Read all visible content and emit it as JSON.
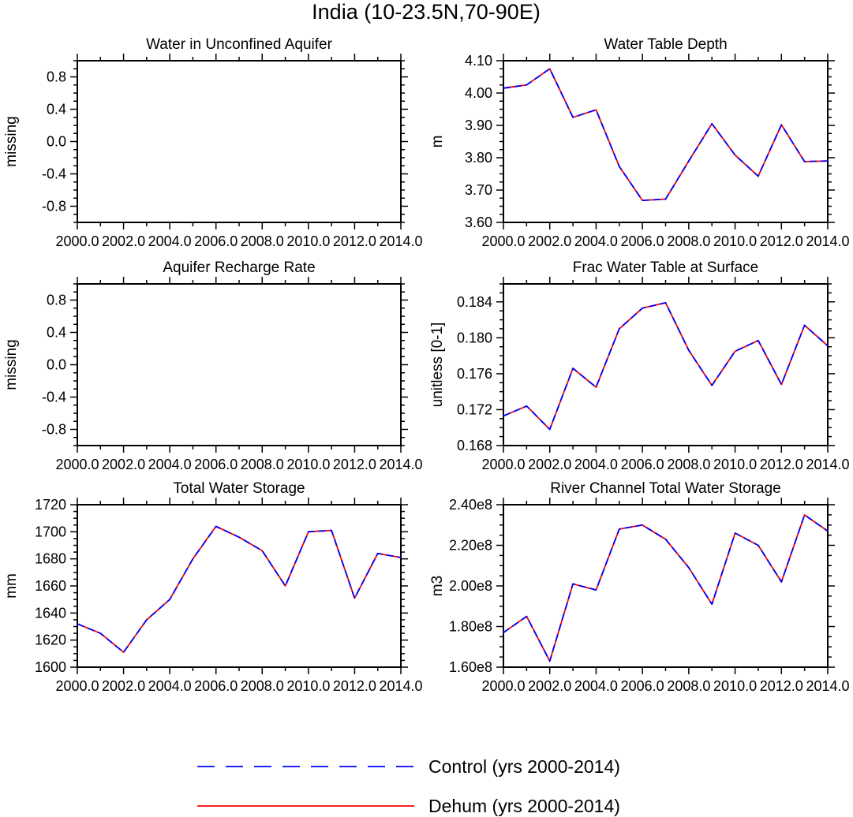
{
  "figure_title": "India (10-23.5N,70-90E)",
  "legend": [
    {
      "label": "Control (yrs 2000-2014)",
      "color": "#0000ff",
      "dash": true
    },
    {
      "label": "Dehum (yrs 2000-2014)",
      "color": "#ff0000",
      "dash": false
    }
  ],
  "chart_data": [
    {
      "type": "line",
      "title": "Water in Unconfined Aquifer",
      "ylabel": "missing",
      "xlim": [
        2000,
        2014
      ],
      "ylim": [
        -1,
        1
      ],
      "xticks": [
        2000,
        2002,
        2004,
        2006,
        2008,
        2010,
        2012,
        2014
      ],
      "xtick_labels": [
        "2000.0",
        "2002.0",
        "2004.0",
        "2006.0",
        "2008.0",
        "2010.0",
        "2012.0",
        "2014.0"
      ],
      "yticks": [
        -0.8,
        -0.4,
        0.0,
        0.4,
        0.8
      ],
      "ytick_labels": [
        "-0.8",
        "-0.4",
        "0.0",
        "0.4",
        "0.8"
      ],
      "x": [],
      "series": []
    },
    {
      "type": "line",
      "title": "Water Table Depth",
      "ylabel": "m",
      "xlim": [
        2000,
        2014
      ],
      "ylim": [
        3.6,
        4.1
      ],
      "xticks": [
        2000,
        2002,
        2004,
        2006,
        2008,
        2010,
        2012,
        2014
      ],
      "xtick_labels": [
        "2000.0",
        "2002.0",
        "2004.0",
        "2006.0",
        "2008.0",
        "2010.0",
        "2012.0",
        "2014.0"
      ],
      "yticks": [
        3.6,
        3.7,
        3.8,
        3.9,
        4.0,
        4.1
      ],
      "ytick_labels": [
        "3.60",
        "3.70",
        "3.80",
        "3.90",
        "4.00",
        "4.10"
      ],
      "x": [
        2000,
        2001,
        2002,
        2003,
        2004,
        2005,
        2006,
        2007,
        2008,
        2009,
        2010,
        2011,
        2012,
        2013,
        2014
      ],
      "series": [
        {
          "name": "Dehum (yrs 2000-2014)",
          "values": [
            4.015,
            4.025,
            4.075,
            3.925,
            3.948,
            3.773,
            3.668,
            3.672,
            3.79,
            3.905,
            3.808,
            3.743,
            3.902,
            3.788,
            3.79
          ]
        },
        {
          "name": "Control (yrs 2000-2014)",
          "values": [
            4.015,
            4.025,
            4.075,
            3.925,
            3.948,
            3.773,
            3.668,
            3.672,
            3.79,
            3.905,
            3.808,
            3.743,
            3.902,
            3.788,
            3.79
          ]
        }
      ]
    },
    {
      "type": "line",
      "title": "Aquifer Recharge Rate",
      "ylabel": "missing",
      "xlim": [
        2000,
        2014
      ],
      "ylim": [
        -1,
        1
      ],
      "xticks": [
        2000,
        2002,
        2004,
        2006,
        2008,
        2010,
        2012,
        2014
      ],
      "xtick_labels": [
        "2000.0",
        "2002.0",
        "2004.0",
        "2006.0",
        "2008.0",
        "2010.0",
        "2012.0",
        "2014.0"
      ],
      "yticks": [
        -0.8,
        -0.4,
        0.0,
        0.4,
        0.8
      ],
      "ytick_labels": [
        "-0.8",
        "-0.4",
        "0.0",
        "0.4",
        "0.8"
      ],
      "x": [],
      "series": []
    },
    {
      "type": "line",
      "title": "Frac Water Table at Surface",
      "ylabel": "unitless [0-1]",
      "xlim": [
        2000,
        2014
      ],
      "ylim": [
        0.168,
        0.186
      ],
      "xticks": [
        2000,
        2002,
        2004,
        2006,
        2008,
        2010,
        2012,
        2014
      ],
      "xtick_labels": [
        "2000.0",
        "2002.0",
        "2004.0",
        "2006.0",
        "2008.0",
        "2010.0",
        "2012.0",
        "2014.0"
      ],
      "yticks": [
        0.168,
        0.172,
        0.176,
        0.18,
        0.184
      ],
      "ytick_labels": [
        "0.168",
        "0.172",
        "0.176",
        "0.180",
        "0.184"
      ],
      "x": [
        2000,
        2001,
        2002,
        2003,
        2004,
        2005,
        2006,
        2007,
        2008,
        2009,
        2010,
        2011,
        2012,
        2013,
        2014
      ],
      "series": [
        {
          "name": "Dehum (yrs 2000-2014)",
          "values": [
            0.1713,
            0.1724,
            0.1698,
            0.1766,
            0.1745,
            0.181,
            0.1833,
            0.1839,
            0.1786,
            0.1747,
            0.1785,
            0.1797,
            0.1748,
            0.1814,
            0.1791
          ]
        },
        {
          "name": "Control (yrs 2000-2014)",
          "values": [
            0.1713,
            0.1724,
            0.1698,
            0.1766,
            0.1745,
            0.181,
            0.1833,
            0.1839,
            0.1786,
            0.1747,
            0.1785,
            0.1797,
            0.1748,
            0.1814,
            0.1791
          ]
        }
      ]
    },
    {
      "type": "line",
      "title": "Total Water Storage",
      "ylabel": "mm",
      "xlim": [
        2000,
        2014
      ],
      "ylim": [
        1600,
        1720
      ],
      "xticks": [
        2000,
        2002,
        2004,
        2006,
        2008,
        2010,
        2012,
        2014
      ],
      "xtick_labels": [
        "2000.0",
        "2002.0",
        "2004.0",
        "2006.0",
        "2008.0",
        "2010.0",
        "2012.0",
        "2014.0"
      ],
      "yticks": [
        1600,
        1620,
        1640,
        1660,
        1680,
        1700,
        1720
      ],
      "ytick_labels": [
        "1600",
        "1620",
        "1640",
        "1660",
        "1680",
        "1700",
        "1720"
      ],
      "x": [
        2000,
        2001,
        2002,
        2003,
        2004,
        2005,
        2006,
        2007,
        2008,
        2009,
        2010,
        2011,
        2012,
        2013,
        2014
      ],
      "series": [
        {
          "name": "Dehum (yrs 2000-2014)",
          "values": [
            1632,
            1625,
            1611,
            1635,
            1650,
            1680,
            1704,
            1696,
            1686,
            1660,
            1700,
            1701,
            1651,
            1684,
            1681
          ]
        },
        {
          "name": "Control (yrs 2000-2014)",
          "values": [
            1632,
            1625,
            1611,
            1635,
            1650,
            1680,
            1704,
            1696,
            1686,
            1660,
            1700,
            1701,
            1651,
            1684,
            1681
          ]
        }
      ]
    },
    {
      "type": "line",
      "title": "River Channel Total Water Storage",
      "ylabel": "m3",
      "xlim": [
        2000,
        2014
      ],
      "ylim": [
        160000000,
        240000000
      ],
      "xticks": [
        2000,
        2002,
        2004,
        2006,
        2008,
        2010,
        2012,
        2014
      ],
      "xtick_labels": [
        "2000.0",
        "2002.0",
        "2004.0",
        "2006.0",
        "2008.0",
        "2010.0",
        "2012.0",
        "2014.0"
      ],
      "yticks": [
        160000000,
        180000000,
        200000000,
        220000000,
        240000000
      ],
      "ytick_labels": [
        "1.60e8",
        "1.80e8",
        "2.00e8",
        "2.20e8",
        "2.40e8"
      ],
      "x": [
        2000,
        2001,
        2002,
        2003,
        2004,
        2005,
        2006,
        2007,
        2008,
        2009,
        2010,
        2011,
        2012,
        2013,
        2014
      ],
      "series": [
        {
          "name": "Dehum (yrs 2000-2014)",
          "values": [
            177000000,
            185000000,
            163000000,
            201000000,
            198000000,
            228000000,
            230000000,
            223000000,
            209000000,
            191000000,
            226000000,
            220000000,
            202000000,
            235000000,
            227000000
          ]
        },
        {
          "name": "Control (yrs 2000-2014)",
          "values": [
            177000000,
            185000000,
            163000000,
            201000000,
            198000000,
            228000000,
            230000000,
            223000000,
            209000000,
            191000000,
            226000000,
            220000000,
            202000000,
            235000000,
            227000000
          ]
        }
      ]
    }
  ]
}
